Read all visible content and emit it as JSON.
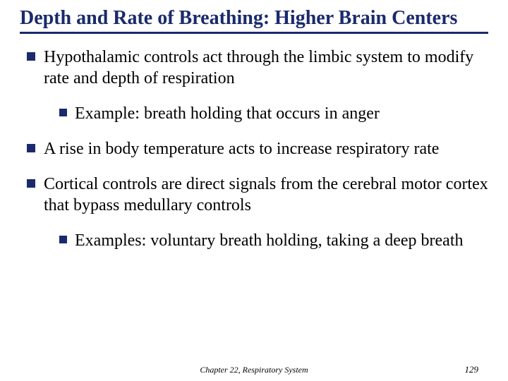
{
  "colors": {
    "title": "#1a2a6c",
    "bullet": "#1a2a6c",
    "underline": "#1a2a6c",
    "text": "#000000",
    "background": "#ffffff"
  },
  "typography": {
    "family": "Times New Roman",
    "title_size_pt": 28,
    "title_weight": "bold",
    "body_size_pt": 24,
    "footer_size_pt": 12
  },
  "title": "Depth and Rate of Breathing: Higher Brain Centers",
  "bullets": [
    {
      "text": "Hypothalamic controls act through the limbic system to modify rate and depth of respiration",
      "sub": [
        {
          "text": "Example: breath holding that occurs in anger"
        }
      ]
    },
    {
      "text": "A rise in body temperature acts to increase respiratory rate",
      "sub": []
    },
    {
      "text": "Cortical controls are direct signals from the cerebral motor cortex that bypass medullary controls",
      "sub": [
        {
          "text": "Examples: voluntary breath holding, taking a deep breath"
        }
      ]
    }
  ],
  "footer": {
    "center": "Chapter 22, Respiratory System",
    "page": "129"
  }
}
